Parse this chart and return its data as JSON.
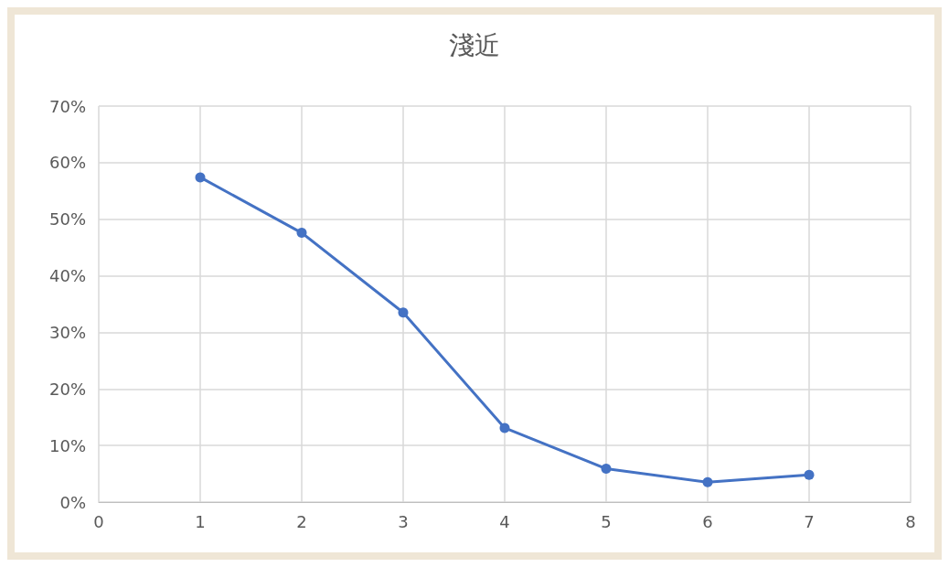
{
  "chart_data": {
    "type": "line",
    "title": "淺近",
    "x": [
      1,
      2,
      3,
      4,
      5,
      6,
      7
    ],
    "series": [
      {
        "color": "#4472c4",
        "values": [
          57.4,
          47.6,
          33.5,
          13.1,
          5.9,
          3.5,
          4.8
        ]
      }
    ],
    "xlim": [
      0,
      8
    ],
    "xticks": [
      0,
      1,
      2,
      3,
      4,
      5,
      6,
      7,
      8
    ],
    "ylim": [
      0,
      70
    ],
    "yticks": [
      {
        "value": 0,
        "label": "0%"
      },
      {
        "value": 10,
        "label": "10%"
      },
      {
        "value": 20,
        "label": "20%"
      },
      {
        "value": 30,
        "label": "30%"
      },
      {
        "value": 40,
        "label": "40%"
      },
      {
        "value": 50,
        "label": "50%"
      },
      {
        "value": 60,
        "label": "60%"
      },
      {
        "value": 70,
        "label": "70%"
      }
    ],
    "grid": true,
    "marker": "circle",
    "line_style": "solid"
  }
}
